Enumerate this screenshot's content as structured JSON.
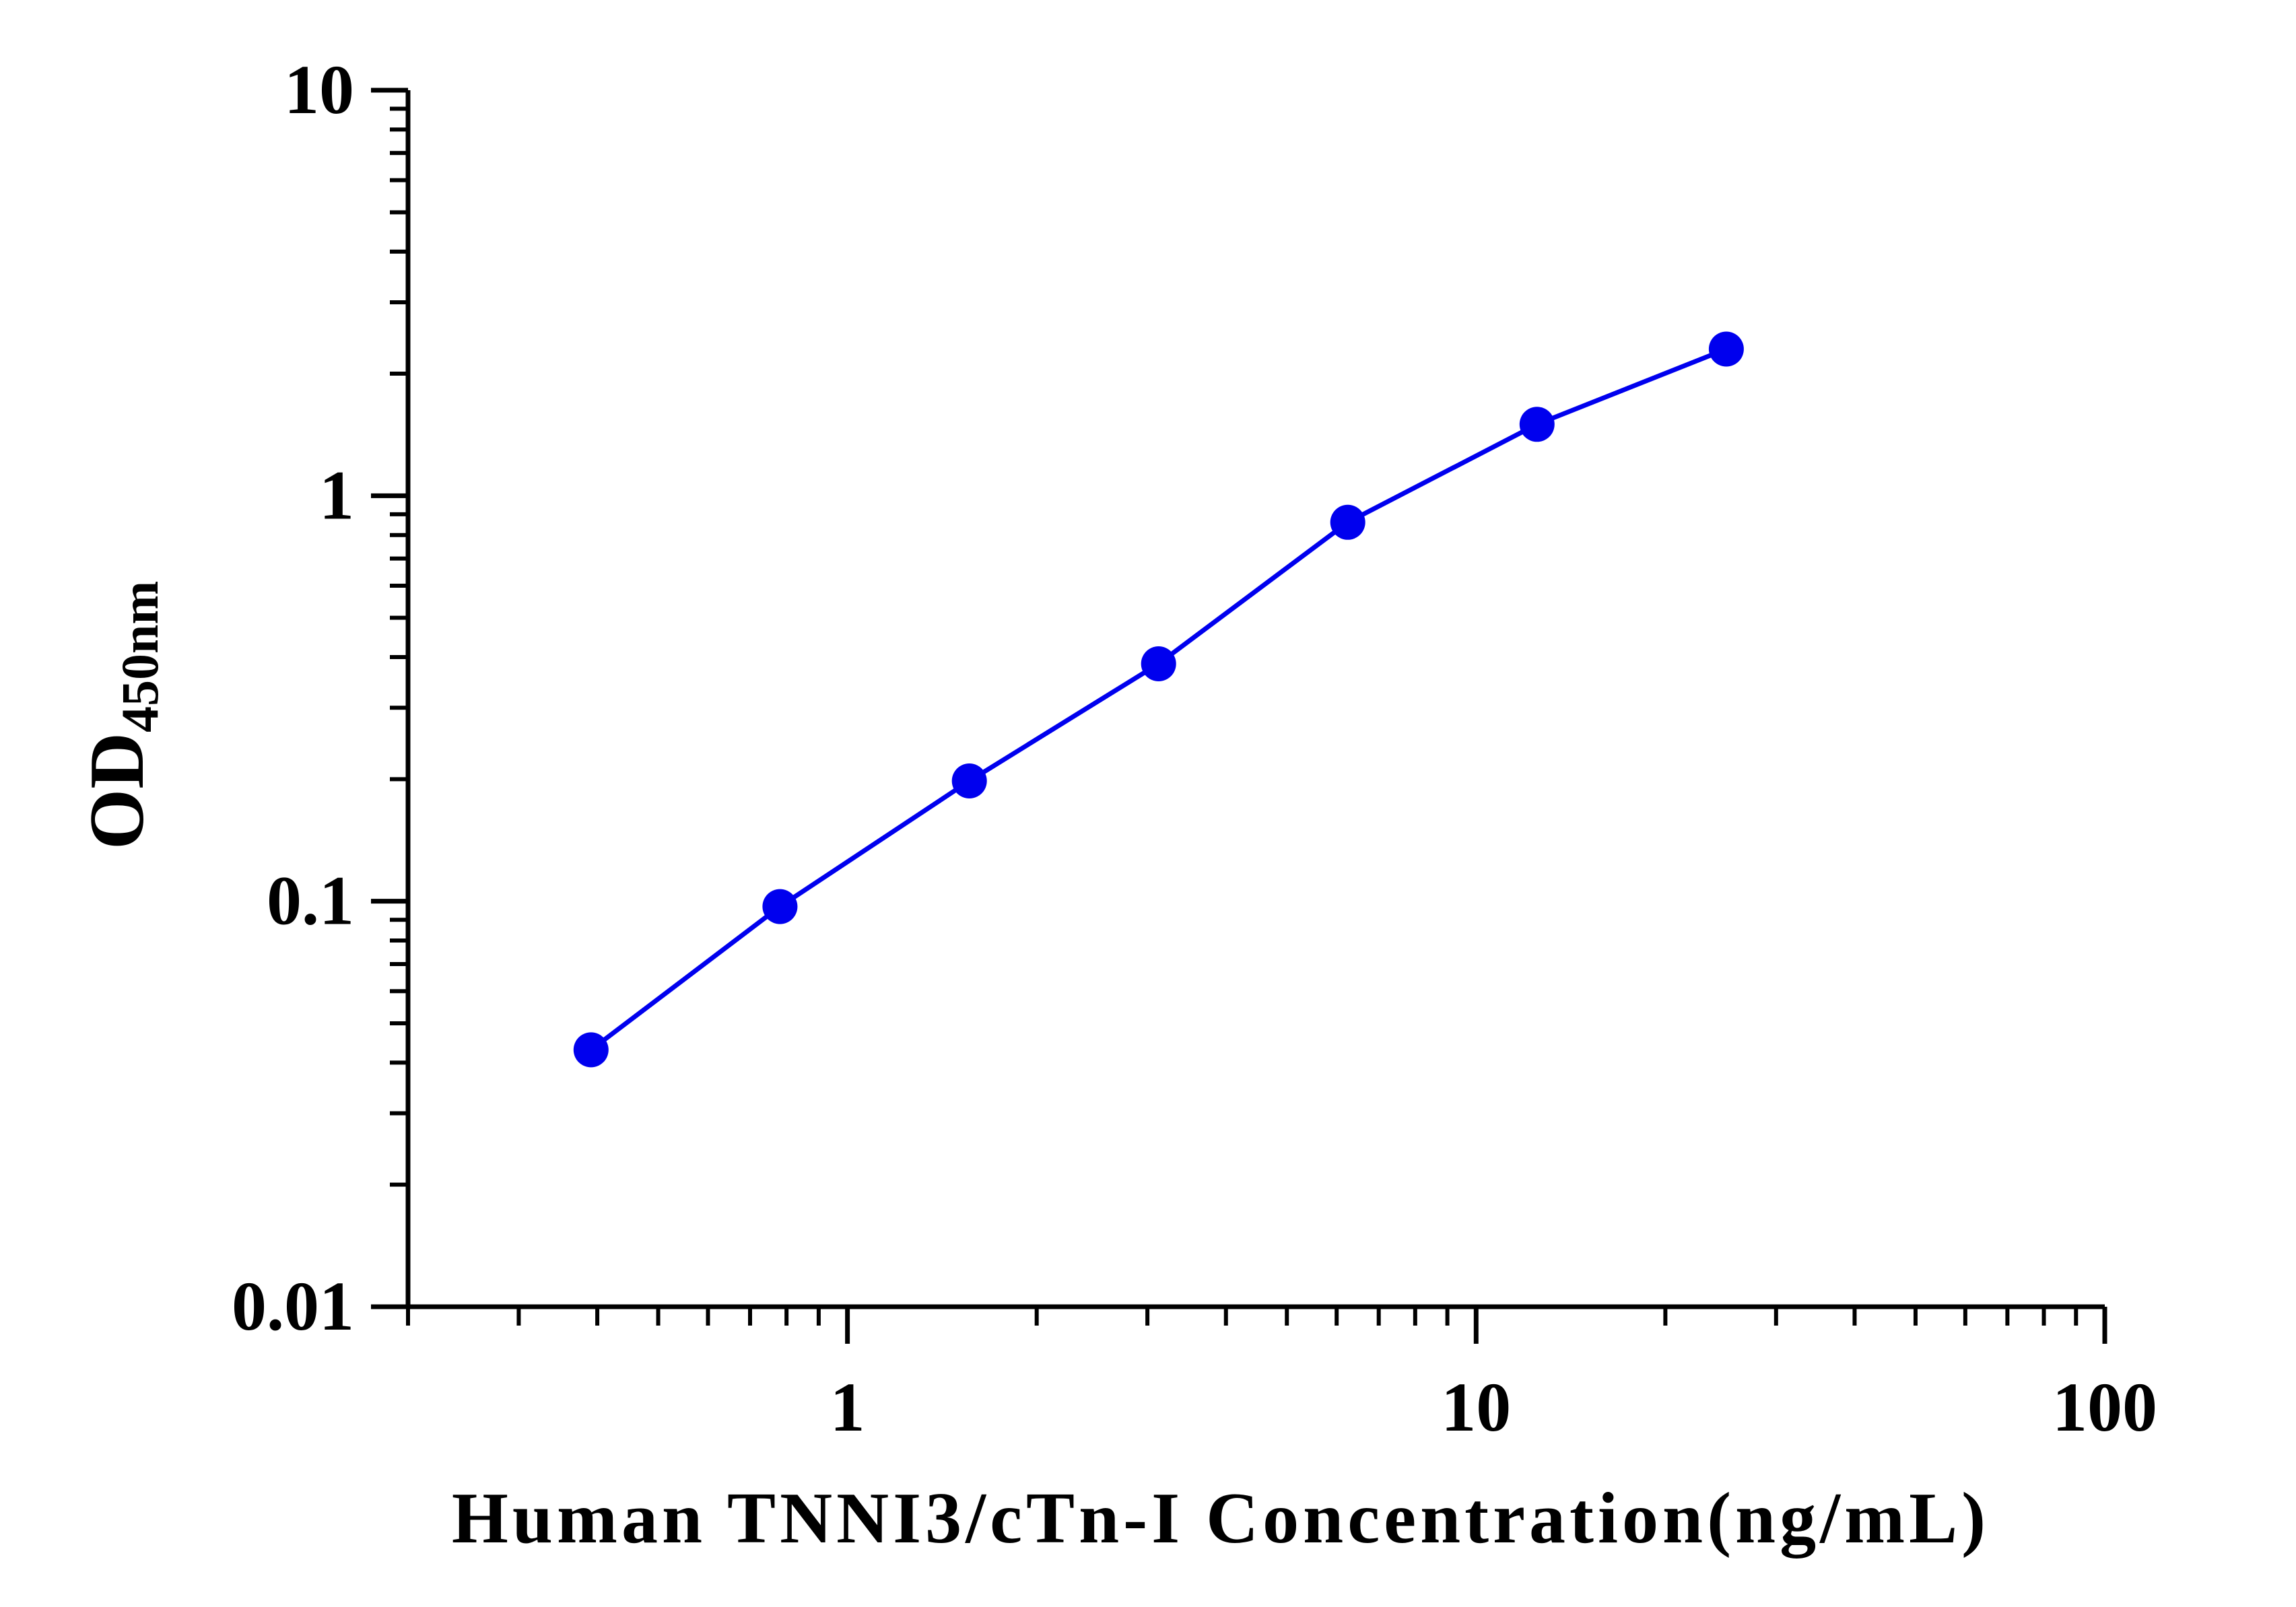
{
  "chart_data": {
    "type": "line",
    "xlabel": "Human TNNI3/cTn-I Concentration(ng/mL)",
    "ylabel_main": "OD",
    "ylabel_sub": "450nm",
    "x_scale": "log",
    "y_scale": "log",
    "xlim": [
      0.2,
      100
    ],
    "ylim": [
      0.01,
      10
    ],
    "x_ticks": [
      1,
      10,
      100
    ],
    "x_tick_labels": [
      "1",
      "10",
      "100"
    ],
    "y_ticks": [
      0.01,
      0.1,
      1,
      10
    ],
    "y_tick_labels": [
      "0.01",
      "0.1",
      "1",
      "10"
    ],
    "grid": false,
    "legend": false,
    "series": [
      {
        "color": "#0000ee",
        "x": [
          0.391,
          0.781,
          1.563,
          3.125,
          6.25,
          12.5,
          25
        ],
        "y": [
          0.043,
          0.097,
          0.198,
          0.385,
          0.86,
          1.5,
          2.3
        ]
      }
    ]
  }
}
